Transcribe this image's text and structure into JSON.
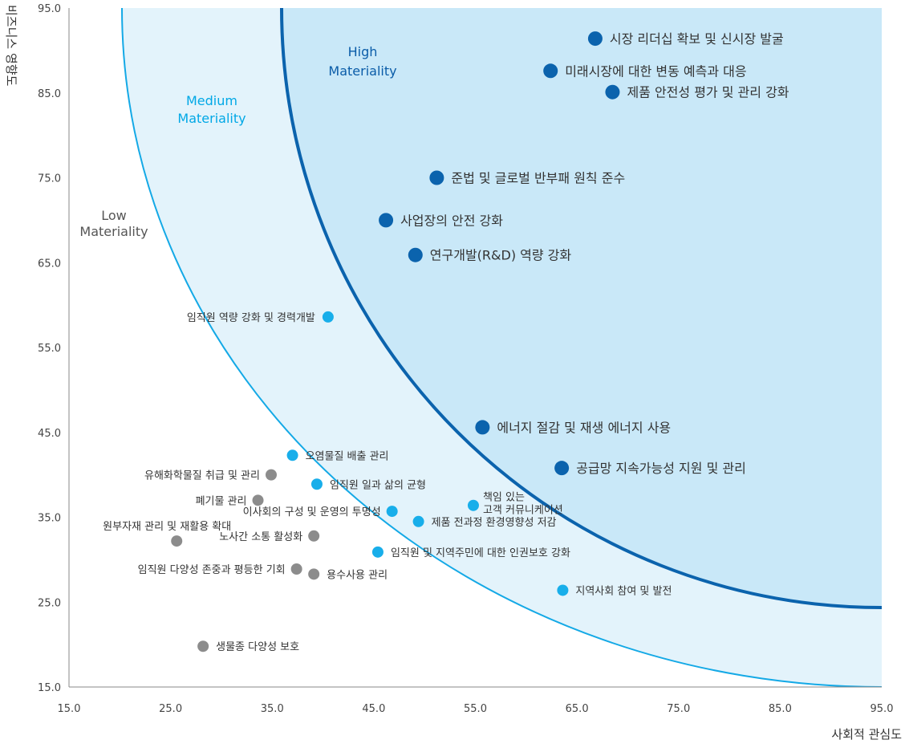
{
  "chart_data": {
    "type": "scatter",
    "xlabel": "사회적 관심도",
    "ylabel": "비즈니스 영향도",
    "xlim": [
      15,
      95
    ],
    "ylim": [
      15,
      95
    ],
    "x_ticks": [
      "15.0",
      "25.0",
      "35.0",
      "45.0",
      "55.0",
      "65.0",
      "75.0",
      "85.0",
      "95.0"
    ],
    "y_ticks": [
      "15.0",
      "25.0",
      "35.0",
      "45.0",
      "55.0",
      "65.0",
      "75.0",
      "85.0",
      "95.0"
    ],
    "grid": false,
    "zones": [
      {
        "lines": [
          "Low",
          "Materiality"
        ],
        "color": "#555555"
      },
      {
        "lines": [
          "Medium",
          "Materiality"
        ],
        "color": "#00a8e6"
      },
      {
        "lines": [
          "High",
          "Materiality"
        ],
        "color": "#0a5ca8"
      }
    ],
    "colors": {
      "high": "#0b63ad",
      "medium": "#18aeea",
      "low": "#8c8c8c",
      "high_region": "#c9e8f8",
      "medium_region": "#e3f3fb",
      "high_boundary": "#0b63ad",
      "medium_boundary": "#14a9e6",
      "axis": "#888888"
    },
    "points": [
      {
        "label": "시장 리더십 확보 및 신시장 발굴",
        "x": 66.8,
        "y": 91.4,
        "group": "high"
      },
      {
        "label": "미래시장에 대한 변동 예측과 대응",
        "x": 62.4,
        "y": 87.6,
        "group": "high"
      },
      {
        "label": "제품 안전성 평가 및 관리 강화",
        "x": 68.5,
        "y": 85.1,
        "group": "high"
      },
      {
        "label": "준법 및 글로벌 반부패 원칙 준수",
        "x": 51.2,
        "y": 75.0,
        "group": "high"
      },
      {
        "label": "사업장의 안전 강화",
        "x": 46.2,
        "y": 70.0,
        "group": "high"
      },
      {
        "label": "연구개발(R&D) 역량 강화",
        "x": 49.1,
        "y": 65.9,
        "group": "high"
      },
      {
        "label": "에너지 절감 및 재생 에너지 사용",
        "x": 55.7,
        "y": 45.6,
        "group": "high"
      },
      {
        "label": "공급망 지속가능성 지원 및 관리",
        "x": 63.5,
        "y": 40.8,
        "group": "high"
      },
      {
        "label": "임직원 역량 강화 및 경력개발",
        "x": 40.5,
        "y": 58.6,
        "group": "medium"
      },
      {
        "label": "오염물질 배출 관리",
        "x": 37.0,
        "y": 42.3,
        "group": "medium"
      },
      {
        "label": "임직원 일과 삶의 균형",
        "x": 39.4,
        "y": 38.9,
        "group": "medium"
      },
      {
        "label": "책임 있는 고객 커뮤니케이션",
        "x": 54.8,
        "y": 36.4,
        "group": "medium"
      },
      {
        "label": "이사회의 구성 및 운영의 투명성",
        "x": 46.8,
        "y": 35.7,
        "group": "medium"
      },
      {
        "label": "제품 전과정 환경영향성 저감",
        "x": 49.4,
        "y": 34.5,
        "group": "medium"
      },
      {
        "label": "임직원 및 지역주민에 대한 인권보호 강화",
        "x": 45.4,
        "y": 30.9,
        "group": "medium"
      },
      {
        "label": "지역사회 참여 및 발전",
        "x": 63.6,
        "y": 26.4,
        "group": "medium"
      },
      {
        "label": "유해화학물질 취급 및 관리",
        "x": 34.9,
        "y": 40.0,
        "group": "low"
      },
      {
        "label": "폐기물 관리",
        "x": 33.6,
        "y": 37.0,
        "group": "low"
      },
      {
        "label": "원부자재 관리 및 재활용 확대",
        "x": 25.6,
        "y": 32.2,
        "group": "low"
      },
      {
        "label": "노사간 소통 활성화",
        "x": 39.1,
        "y": 32.8,
        "group": "low"
      },
      {
        "label": "임직원 다양성 존중과 평등한 기회",
        "x": 37.4,
        "y": 28.9,
        "group": "low"
      },
      {
        "label": "용수사용 관리",
        "x": 39.1,
        "y": 28.3,
        "group": "low"
      },
      {
        "label": "생물종 다양성 보호",
        "x": 28.2,
        "y": 19.8,
        "group": "low"
      }
    ]
  }
}
